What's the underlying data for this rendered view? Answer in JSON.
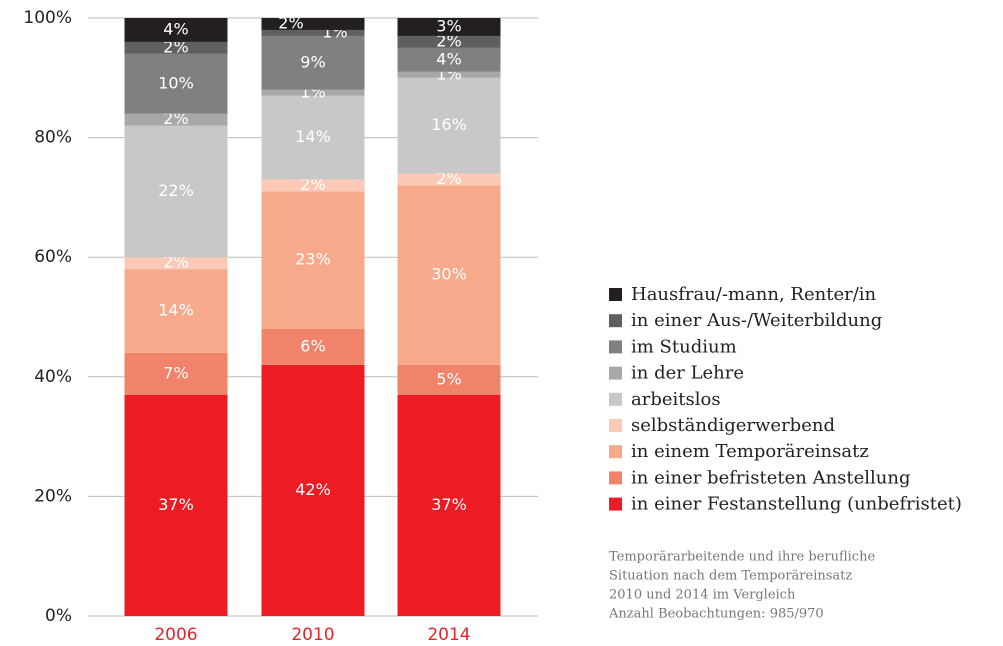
{
  "chart_data": {
    "type": "stacked_bar",
    "categories": [
      "2006",
      "2010",
      "2014"
    ],
    "series": [
      {
        "name": "in einer Festanstellung (unbefristet)",
        "color": "#ed1c24",
        "values": [
          37,
          42,
          37
        ],
        "value_labels": [
          "37%",
          "42%",
          "37%"
        ]
      },
      {
        "name": "in einer befristeten Anstellung",
        "color": "#f0836a",
        "values": [
          7,
          6,
          5
        ],
        "value_labels": [
          "7%",
          "6%",
          "5%"
        ]
      },
      {
        "name": "in einem Temporäreinsatz",
        "color": "#f7a98c",
        "values": [
          14,
          23,
          30
        ],
        "value_labels": [
          "14%",
          "23%",
          "30%"
        ]
      },
      {
        "name": "selbständigerwerbend",
        "color": "#fbc9b5",
        "values": [
          2,
          2,
          2
        ],
        "value_labels": [
          "2%",
          "2%",
          "2%"
        ]
      },
      {
        "name": "arbeitslos",
        "color": "#c8c8c8",
        "values": [
          22,
          14,
          16
        ],
        "value_labels": [
          "22%",
          "14%",
          "16%"
        ]
      },
      {
        "name": "in der Lehre",
        "color": "#a8a8a9",
        "values": [
          2,
          1,
          1
        ],
        "value_labels": [
          "2%",
          "1%",
          "1%"
        ]
      },
      {
        "name": "im Studium",
        "color": "#808082",
        "values": [
          10,
          9,
          4
        ],
        "value_labels": [
          "10%",
          "9%",
          "4%"
        ]
      },
      {
        "name": "in einer Aus-/Weiterbildung",
        "color": "#5f5f61",
        "values": [
          2,
          1,
          2
        ],
        "value_labels": [
          "2%",
          "1%",
          "2%"
        ]
      },
      {
        "name": "Hausfrau/-mann, Renter/in",
        "color": "#231f20",
        "values": [
          4,
          2,
          3
        ],
        "value_labels": [
          "4%",
          "2%",
          "3%"
        ]
      }
    ],
    "ylim": [
      0,
      100
    ],
    "yticks": [
      {
        "value": 0,
        "label": "0%"
      },
      {
        "value": 20,
        "label": "20%"
      },
      {
        "value": 40,
        "label": "40%"
      },
      {
        "value": 60,
        "label": "60%"
      },
      {
        "value": 80,
        "label": "80%"
      },
      {
        "value": 100,
        "label": "100%"
      }
    ],
    "grid": true,
    "legend": "right",
    "note": [
      "Temporärarbeitende und ihre berufliche",
      "Situation nach dem Temporäreinsatz",
      "2010 und 2014 im Vergleich",
      "Anzahl Beobachtungen: 985/970"
    ]
  }
}
